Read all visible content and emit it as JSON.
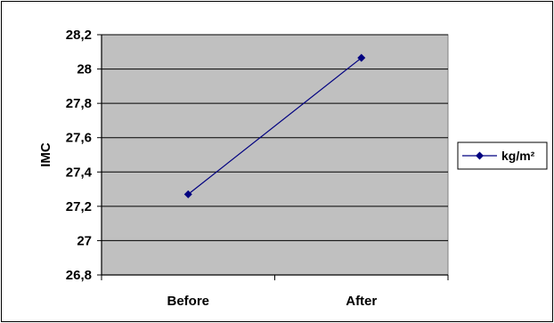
{
  "chart_data": {
    "type": "line",
    "categories": [
      "Before",
      "After"
    ],
    "series": [
      {
        "name": "kg/m²",
        "values": [
          27.27,
          28.065
        ]
      }
    ],
    "ylabel": "IMC",
    "ylim": [
      26.8,
      28.2
    ],
    "yticks": [
      "26,8",
      "27",
      "27,2",
      "27,4",
      "27,6",
      "27,8",
      "28",
      "28,2"
    ],
    "grid": true,
    "legend": "right",
    "colors": {
      "series": "#000080",
      "plot_bg": "#c0c0c0",
      "grid": "#000000"
    }
  }
}
